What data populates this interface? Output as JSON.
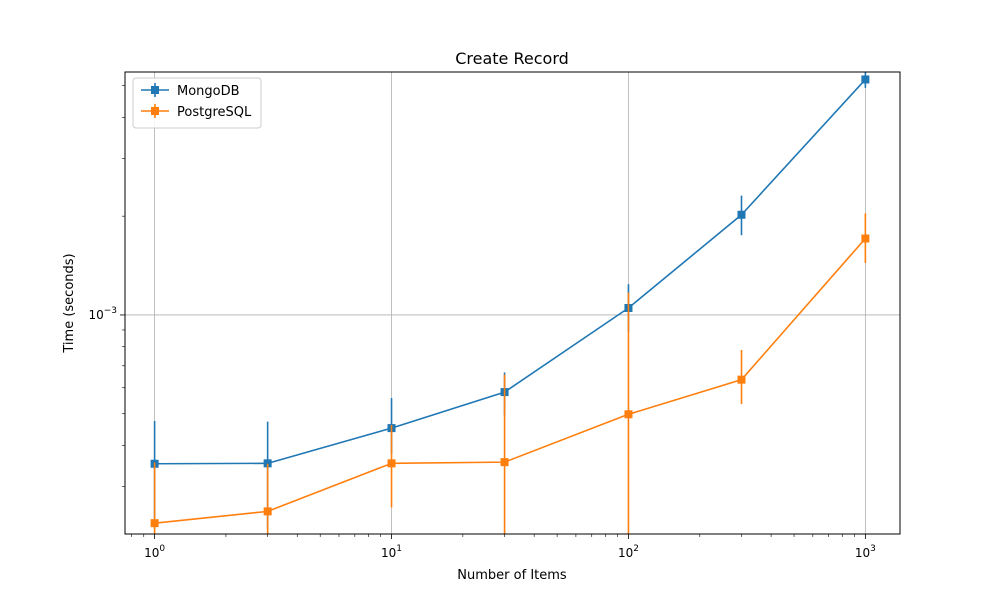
{
  "chart_data": {
    "type": "line",
    "title": "Create Record",
    "xlabel": "Number of Items",
    "ylabel": "Time (seconds)",
    "x_scale": "log",
    "y_scale": "log",
    "xlim": [
      0.75,
      1400
    ],
    "ylim": [
      0.000215,
      0.0055
    ],
    "grid": "major",
    "legend_position": "top-left",
    "x_ticks": [
      {
        "value": 1,
        "label": "10^0"
      },
      {
        "value": 10,
        "label": "10^1"
      },
      {
        "value": 100,
        "label": "10^2"
      },
      {
        "value": 1000,
        "label": "10^3"
      }
    ],
    "y_ticks": [
      {
        "value": 0.001,
        "label": "10^−3"
      }
    ],
    "x": [
      1,
      3,
      10,
      30,
      100,
      300,
      1000
    ],
    "series": [
      {
        "name": "MongoDB",
        "color": "#1f77b4",
        "marker": "square",
        "values": [
          0.000352,
          0.000353,
          0.000452,
          0.000582,
          0.00105,
          0.00202,
          0.00522
        ],
        "err_low": [
          0.000223,
          0.000223,
          0.000378,
          0.000494,
          0.00089,
          0.00175,
          0.00492
        ],
        "err_high": [
          0.000475,
          0.000473,
          0.000558,
          0.000668,
          0.00124,
          0.00231,
          0.00558
        ]
      },
      {
        "name": "PostgreSQL",
        "color": "#ff7f0e",
        "marker": "square",
        "values": [
          0.000232,
          0.000252,
          0.000353,
          0.000356,
          0.000498,
          0.000635,
          0.00171
        ],
        "err_low": [
          0.00021,
          0.00021,
          0.000259,
          0.00021,
          0.00021,
          0.000535,
          0.00144
        ],
        "err_high": [
          0.000355,
          0.000352,
          0.000462,
          0.000658,
          0.00117,
          0.000782,
          0.00204
        ]
      }
    ]
  }
}
